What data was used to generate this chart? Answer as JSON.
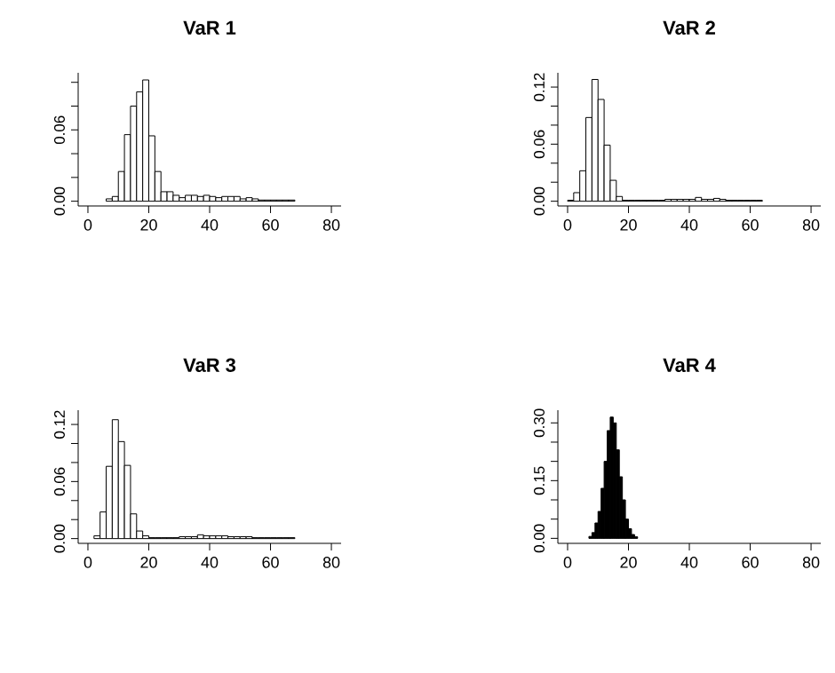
{
  "chart_data": [
    {
      "type": "histogram",
      "title": "VaR 1",
      "color": "#ffffff",
      "xlim": [
        -3.2,
        83.2
      ],
      "ylim": [
        -0.004,
        0.108
      ],
      "xticks": [
        0,
        20,
        40,
        60,
        80
      ],
      "yticks": [
        {
          "value": 0,
          "label": "0.00"
        },
        {
          "value": 0.02,
          "label": null
        },
        {
          "value": 0.04,
          "label": null
        },
        {
          "value": 0.06,
          "label": "0.06"
        },
        {
          "value": 0.08,
          "label": null
        },
        {
          "value": 0.1,
          "label": null
        }
      ],
      "bins": [
        6,
        8,
        10,
        12,
        14,
        16,
        18,
        20,
        22,
        24,
        26,
        28,
        30,
        32,
        34,
        36,
        38,
        40,
        42,
        44,
        46,
        48,
        50,
        52,
        54,
        56,
        58,
        60,
        62,
        64,
        66,
        68
      ],
      "values": [
        0.002,
        0.004,
        0.025,
        0.056,
        0.08,
        0.092,
        0.102,
        0.055,
        0.025,
        0.008,
        0.008,
        0.005,
        0.003,
        0.005,
        0.005,
        0.004,
        0.005,
        0.004,
        0.003,
        0.004,
        0.004,
        0.004,
        0.002,
        0.003,
        0.002,
        0.001,
        0.001,
        0.001,
        0.001,
        0.001,
        0.001
      ]
    },
    {
      "type": "histogram",
      "title": "VaR 2",
      "color": "#ffffff",
      "xlim": [
        -3.2,
        83.2
      ],
      "ylim": [
        -0.005,
        0.135
      ],
      "xticks": [
        0,
        20,
        40,
        60,
        80
      ],
      "yticks": [
        {
          "value": 0,
          "label": "0.00"
        },
        {
          "value": 0.02,
          "label": null
        },
        {
          "value": 0.04,
          "label": null
        },
        {
          "value": 0.06,
          "label": "0.06"
        },
        {
          "value": 0.08,
          "label": null
        },
        {
          "value": 0.1,
          "label": null
        },
        {
          "value": 0.12,
          "label": "0.12"
        }
      ],
      "bins": [
        0,
        2,
        4,
        6,
        8,
        10,
        12,
        14,
        16,
        18,
        20,
        22,
        24,
        26,
        28,
        30,
        32,
        34,
        36,
        38,
        40,
        42,
        44,
        46,
        48,
        50,
        52,
        54,
        56,
        58,
        60,
        62,
        64
      ],
      "values": [
        0.001,
        0.009,
        0.032,
        0.088,
        0.128,
        0.107,
        0.059,
        0.022,
        0.005,
        0.001,
        0.001,
        0.001,
        0.001,
        0.001,
        0.001,
        0.001,
        0.002,
        0.002,
        0.002,
        0.002,
        0.002,
        0.004,
        0.002,
        0.002,
        0.003,
        0.002,
        0.001,
        0.001,
        0.001,
        0.001,
        0.001,
        0.001
      ]
    },
    {
      "type": "histogram",
      "title": "VaR 3",
      "color": "#ffffff",
      "xlim": [
        -3.2,
        83.2
      ],
      "ylim": [
        -0.005,
        0.135
      ],
      "xticks": [
        0,
        20,
        40,
        60,
        80
      ],
      "yticks": [
        {
          "value": 0,
          "label": "0.00"
        },
        {
          "value": 0.02,
          "label": null
        },
        {
          "value": 0.04,
          "label": null
        },
        {
          "value": 0.06,
          "label": "0.06"
        },
        {
          "value": 0.08,
          "label": null
        },
        {
          "value": 0.1,
          "label": null
        },
        {
          "value": 0.12,
          "label": "0.12"
        }
      ],
      "bins": [
        2,
        4,
        6,
        8,
        10,
        12,
        14,
        16,
        18,
        20,
        22,
        24,
        26,
        28,
        30,
        32,
        34,
        36,
        38,
        40,
        42,
        44,
        46,
        48,
        50,
        52,
        54,
        56,
        58,
        60,
        62,
        64,
        66,
        68
      ],
      "values": [
        0.003,
        0.028,
        0.076,
        0.125,
        0.102,
        0.077,
        0.026,
        0.008,
        0.003,
        0.001,
        0.001,
        0.001,
        0.001,
        0.001,
        0.002,
        0.002,
        0.002,
        0.004,
        0.003,
        0.003,
        0.003,
        0.003,
        0.002,
        0.002,
        0.002,
        0.002,
        0.001,
        0.001,
        0.001,
        0.001,
        0.001,
        0.001,
        0.001
      ]
    },
    {
      "type": "histogram",
      "title": "VaR 4",
      "color": "#000000",
      "xlim": [
        -3.2,
        83.2
      ],
      "ylim": [
        -0.013,
        0.333
      ],
      "xticks": [
        0,
        20,
        40,
        60,
        80
      ],
      "yticks": [
        {
          "value": 0,
          "label": "0.00"
        },
        {
          "value": 0.05,
          "label": null
        },
        {
          "value": 0.1,
          "label": null
        },
        {
          "value": 0.15,
          "label": "0.15"
        },
        {
          "value": 0.2,
          "label": null
        },
        {
          "value": 0.25,
          "label": null
        },
        {
          "value": 0.3,
          "label": "0.30"
        }
      ],
      "bins": [
        7,
        8,
        9,
        10,
        11,
        12,
        13,
        14,
        15,
        16,
        17,
        18,
        19,
        20,
        21,
        22,
        23
      ],
      "values": [
        0.005,
        0.015,
        0.04,
        0.07,
        0.13,
        0.2,
        0.28,
        0.315,
        0.3,
        0.23,
        0.16,
        0.1,
        0.05,
        0.025,
        0.01,
        0.004
      ]
    }
  ]
}
